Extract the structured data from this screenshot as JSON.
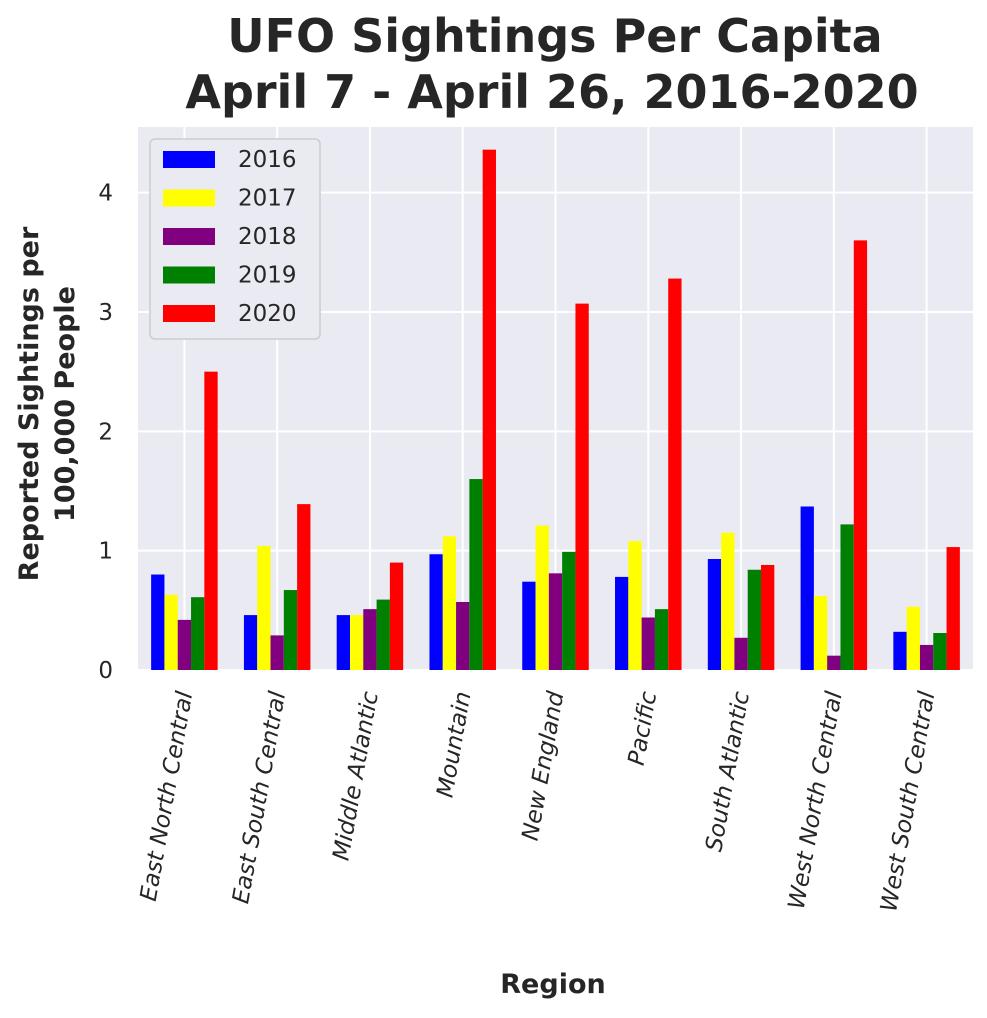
{
  "chart_data": {
    "type": "bar",
    "title_lines": [
      "UFO Sightings Per Capita",
      "April 7 - April 26, 2016-2020"
    ],
    "xlabel": "Region",
    "ylabel_lines": [
      "Reported Sightings per",
      "100,000 People"
    ],
    "ylim": [
      0,
      4.55
    ],
    "yticks": [
      0,
      1,
      2,
      3,
      4
    ],
    "ytick_labels": [
      "0",
      "1",
      "2",
      "3",
      "4"
    ],
    "grid": true,
    "legend_position": "top-left",
    "categories": [
      "East North Central",
      "East South Central",
      "Middle Atlantic",
      "Mountain",
      "New England",
      "Pacific",
      "South Atlantic",
      "West North Central",
      "West South Central"
    ],
    "series": [
      {
        "name": "2016",
        "color": "#0000ff",
        "values": [
          0.8,
          0.46,
          0.46,
          0.97,
          0.74,
          0.78,
          0.93,
          1.37,
          0.32
        ]
      },
      {
        "name": "2017",
        "color": "#ffff00",
        "values": [
          0.63,
          1.04,
          0.46,
          1.12,
          1.21,
          1.08,
          1.15,
          0.62,
          0.53
        ]
      },
      {
        "name": "2018",
        "color": "#800080",
        "values": [
          0.42,
          0.29,
          0.51,
          0.57,
          0.81,
          0.44,
          0.27,
          0.12,
          0.21
        ]
      },
      {
        "name": "2019",
        "color": "#008000",
        "values": [
          0.61,
          0.67,
          0.59,
          1.6,
          0.99,
          0.51,
          0.84,
          1.22,
          0.31
        ]
      },
      {
        "name": "2020",
        "color": "#ff0000",
        "values": [
          2.5,
          1.39,
          0.9,
          4.36,
          3.07,
          3.28,
          0.88,
          3.6,
          1.03
        ]
      }
    ]
  },
  "colors": {
    "plot_background": "#eaeaf2",
    "grid": "#ffffff",
    "text": "#262626"
  }
}
